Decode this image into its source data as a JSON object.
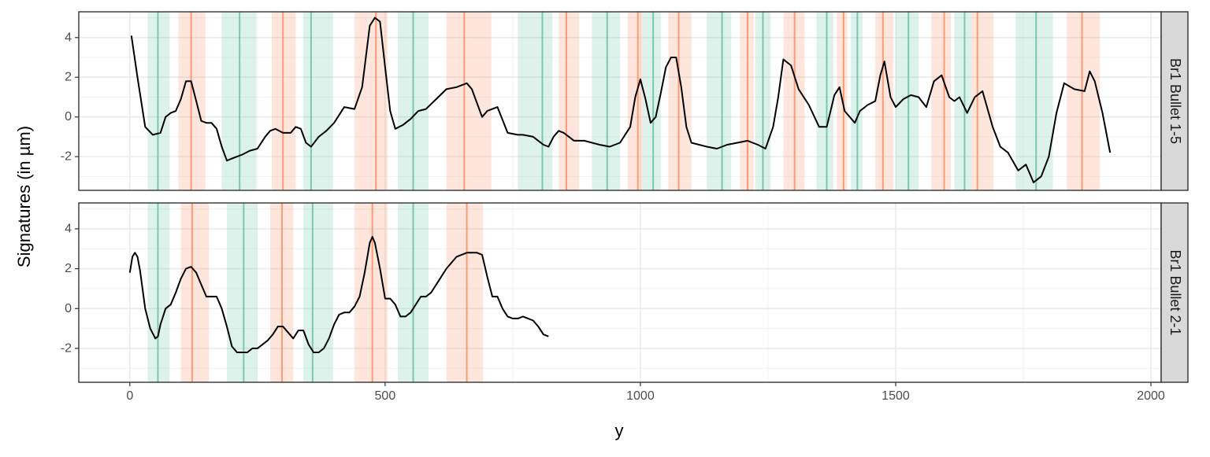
{
  "chart_data": {
    "type": "line",
    "xlabel": "y",
    "ylabel": "Signatures (in µm)",
    "xlim": [
      -100,
      2020
    ],
    "ylim": [
      -3.7,
      5.3
    ],
    "x_ticks": [
      0,
      500,
      1000,
      1500,
      2000
    ],
    "x_tick_labels": [
      "0",
      "500",
      "1000",
      "1500",
      "2000"
    ],
    "y_ticks": [
      4,
      2,
      0,
      -2
    ],
    "y_tick_labels": [
      "4",
      "2",
      "0",
      "-2"
    ],
    "grid": true,
    "band_colors": {
      "green": "#66c2a5",
      "orange": "#fc8d62"
    },
    "line_color": "#000000",
    "panels": [
      {
        "strip": "Br1 Bullet 1-5",
        "series": [
          {
            "x": [
              3,
              15,
              30,
              45,
              60,
              70,
              80,
              90,
              100,
              110,
              120,
              130,
              140,
              150,
              160,
              170,
              180,
              190,
              200,
              210,
              220,
              235,
              250,
              265,
              275,
              285,
              300,
              315,
              325,
              335,
              345,
              355,
              370,
              385,
              400,
              420,
              440,
              455,
              470,
              480,
              490,
              500,
              510,
              520,
              535,
              550,
              565,
              580,
              600,
              620,
              640,
              650,
              660,
              670,
              690,
              700,
              720,
              740,
              760,
              770,
              790,
              810,
              820,
              830,
              840,
              850,
              870,
              890,
              920,
              940,
              960,
              980,
              990,
              1000,
              1010,
              1020,
              1030,
              1040,
              1050,
              1060,
              1070,
              1080,
              1090,
              1100,
              1115,
              1130,
              1150,
              1170,
              1190,
              1210,
              1220,
              1230,
              1245,
              1260,
              1270,
              1280,
              1295,
              1310,
              1330,
              1350,
              1365,
              1380,
              1390,
              1400,
              1420,
              1430,
              1445,
              1460,
              1470,
              1478,
              1490,
              1500,
              1515,
              1530,
              1545,
              1560,
              1575,
              1590,
              1605,
              1615,
              1625,
              1640,
              1655,
              1670,
              1690,
              1705,
              1720,
              1740,
              1755,
              1770,
              1785,
              1800,
              1815,
              1830,
              1850,
              1870,
              1880,
              1890,
              1905,
              1920
            ],
            "y": [
              4.1,
              2.0,
              -0.5,
              -0.9,
              -0.8,
              0.0,
              0.2,
              0.3,
              0.9,
              1.8,
              1.8,
              0.8,
              -0.2,
              -0.3,
              -0.3,
              -0.6,
              -1.5,
              -2.2,
              -2.1,
              -2.0,
              -1.9,
              -1.7,
              -1.6,
              -1.0,
              -0.7,
              -0.6,
              -0.8,
              -0.8,
              -0.5,
              -0.6,
              -1.3,
              -1.5,
              -1.0,
              -0.7,
              -0.3,
              0.5,
              0.4,
              1.5,
              4.6,
              5.0,
              4.8,
              2.5,
              0.3,
              -0.6,
              -0.4,
              -0.1,
              0.3,
              0.4,
              0.9,
              1.4,
              1.5,
              1.6,
              1.7,
              1.4,
              0.0,
              0.3,
              0.5,
              -0.8,
              -0.9,
              -0.9,
              -1.0,
              -1.4,
              -1.5,
              -1.0,
              -0.7,
              -0.8,
              -1.2,
              -1.2,
              -1.4,
              -1.5,
              -1.3,
              -0.5,
              1.0,
              1.9,
              0.9,
              -0.3,
              0.0,
              1.2,
              2.5,
              3.0,
              3.0,
              1.5,
              -0.5,
              -1.3,
              -1.4,
              -1.5,
              -1.6,
              -1.4,
              -1.3,
              -1.2,
              -1.3,
              -1.4,
              -1.6,
              -0.5,
              1.0,
              2.9,
              2.6,
              1.4,
              0.6,
              -0.5,
              -0.5,
              1.1,
              1.5,
              0.3,
              -0.3,
              0.3,
              0.6,
              0.8,
              2.1,
              2.8,
              1.0,
              0.5,
              0.9,
              1.1,
              1.0,
              0.5,
              1.8,
              2.1,
              1.0,
              0.8,
              1.0,
              0.2,
              1.0,
              1.3,
              -0.5,
              -1.5,
              -1.8,
              -2.7,
              -2.4,
              -3.3,
              -3.0,
              -2.0,
              0.2,
              1.7,
              1.4,
              1.3,
              2.3,
              1.8,
              0.2,
              -1.8
            ]
          }
        ],
        "bands": [
          {
            "start": 35,
            "end": 78,
            "mark": 55,
            "color": "green"
          },
          {
            "start": 95,
            "end": 148,
            "mark": 120,
            "color": "orange"
          },
          {
            "start": 180,
            "end": 248,
            "mark": 215,
            "color": "green"
          },
          {
            "start": 278,
            "end": 325,
            "mark": 300,
            "color": "orange"
          },
          {
            "start": 340,
            "end": 398,
            "mark": 355,
            "color": "green"
          },
          {
            "start": 440,
            "end": 505,
            "mark": 482,
            "color": "orange"
          },
          {
            "start": 525,
            "end": 585,
            "mark": 555,
            "color": "green"
          },
          {
            "start": 620,
            "end": 708,
            "mark": 655,
            "color": "orange"
          },
          {
            "start": 760,
            "end": 828,
            "mark": 808,
            "color": "green"
          },
          {
            "start": 840,
            "end": 880,
            "mark": 855,
            "color": "orange"
          },
          {
            "start": 905,
            "end": 960,
            "mark": 935,
            "color": "green"
          },
          {
            "start": 975,
            "end": 1005,
            "mark": 995,
            "color": "orange"
          },
          {
            "start": 1005,
            "end": 1040,
            "mark": 1025,
            "color": "green"
          },
          {
            "start": 1055,
            "end": 1100,
            "mark": 1075,
            "color": "orange"
          },
          {
            "start": 1130,
            "end": 1178,
            "mark": 1160,
            "color": "green"
          },
          {
            "start": 1195,
            "end": 1222,
            "mark": 1210,
            "color": "orange"
          },
          {
            "start": 1225,
            "end": 1255,
            "mark": 1240,
            "color": "green"
          },
          {
            "start": 1280,
            "end": 1322,
            "mark": 1302,
            "color": "orange"
          },
          {
            "start": 1345,
            "end": 1378,
            "mark": 1365,
            "color": "green"
          },
          {
            "start": 1385,
            "end": 1405,
            "mark": 1398,
            "color": "orange"
          },
          {
            "start": 1412,
            "end": 1435,
            "mark": 1425,
            "color": "green"
          },
          {
            "start": 1460,
            "end": 1495,
            "mark": 1475,
            "color": "orange"
          },
          {
            "start": 1500,
            "end": 1545,
            "mark": 1525,
            "color": "green"
          },
          {
            "start": 1570,
            "end": 1608,
            "mark": 1595,
            "color": "orange"
          },
          {
            "start": 1615,
            "end": 1648,
            "mark": 1635,
            "color": "green"
          },
          {
            "start": 1648,
            "end": 1692,
            "mark": 1660,
            "color": "orange"
          },
          {
            "start": 1735,
            "end": 1808,
            "mark": 1775,
            "color": "green"
          },
          {
            "start": 1835,
            "end": 1900,
            "mark": 1865,
            "color": "orange"
          }
        ]
      },
      {
        "strip": "Br1 Bullet 2-1",
        "series": [
          {
            "x": [
              0,
              5,
              10,
              15,
              20,
              30,
              40,
              50,
              55,
              60,
              70,
              80,
              90,
              100,
              110,
              120,
              130,
              140,
              150,
              160,
              170,
              180,
              190,
              200,
              210,
              220,
              230,
              240,
              250,
              260,
              270,
              280,
              290,
              300,
              310,
              320,
              330,
              340,
              350,
              360,
              370,
              380,
              390,
              400,
              410,
              420,
              430,
              440,
              450,
              460,
              470,
              475,
              480,
              490,
              500,
              510,
              520,
              530,
              540,
              550,
              560,
              570,
              580,
              590,
              600,
              620,
              640,
              660,
              670,
              680,
              690,
              700,
              710,
              720,
              730,
              740,
              750,
              760,
              770,
              780,
              790,
              800,
              810,
              820
            ],
            "y": [
              1.8,
              2.6,
              2.8,
              2.6,
              1.9,
              0.0,
              -1.0,
              -1.5,
              -1.4,
              -0.8,
              0.0,
              0.2,
              0.8,
              1.5,
              2.0,
              2.1,
              1.8,
              1.2,
              0.6,
              0.6,
              0.6,
              0.0,
              -0.9,
              -1.9,
              -2.2,
              -2.2,
              -2.2,
              -2.0,
              -2.0,
              -1.8,
              -1.6,
              -1.3,
              -0.9,
              -0.9,
              -1.2,
              -1.5,
              -1.1,
              -1.1,
              -1.8,
              -2.2,
              -2.2,
              -2.0,
              -1.5,
              -0.8,
              -0.3,
              -0.2,
              -0.2,
              0.1,
              0.6,
              1.8,
              3.3,
              3.6,
              3.3,
              2.0,
              0.5,
              0.5,
              0.2,
              -0.4,
              -0.4,
              -0.2,
              0.2,
              0.6,
              0.6,
              0.8,
              1.2,
              2.0,
              2.6,
              2.8,
              2.8,
              2.8,
              2.7,
              1.6,
              0.6,
              0.6,
              0.0,
              -0.4,
              -0.5,
              -0.5,
              -0.4,
              -0.5,
              -0.6,
              -0.9,
              -1.3,
              -1.4
            ]
          }
        ],
        "bands": [
          {
            "start": 35,
            "end": 78,
            "mark": 55,
            "color": "green"
          },
          {
            "start": 100,
            "end": 155,
            "mark": 122,
            "color": "orange"
          },
          {
            "start": 190,
            "end": 250,
            "mark": 223,
            "color": "green"
          },
          {
            "start": 275,
            "end": 320,
            "mark": 298,
            "color": "orange"
          },
          {
            "start": 340,
            "end": 398,
            "mark": 358,
            "color": "green"
          },
          {
            "start": 440,
            "end": 505,
            "mark": 475,
            "color": "orange"
          },
          {
            "start": 525,
            "end": 585,
            "mark": 555,
            "color": "green"
          },
          {
            "start": 620,
            "end": 692,
            "mark": 660,
            "color": "orange"
          }
        ]
      }
    ]
  }
}
